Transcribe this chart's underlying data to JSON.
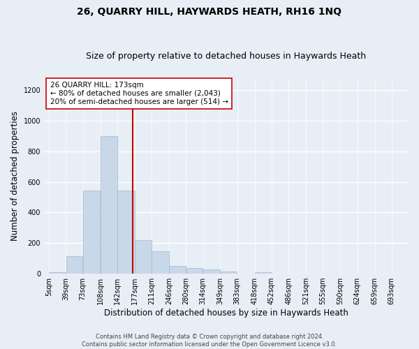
{
  "title_line1": "26, QUARRY HILL, HAYWARDS HEATH, RH16 1NQ",
  "title_line2": "Size of property relative to detached houses in Haywards Heath",
  "xlabel": "Distribution of detached houses by size in Haywards Heath",
  "ylabel": "Number of detached properties",
  "bin_labels": [
    "5sqm",
    "39sqm",
    "73sqm",
    "108sqm",
    "142sqm",
    "177sqm",
    "211sqm",
    "246sqm",
    "280sqm",
    "314sqm",
    "349sqm",
    "383sqm",
    "418sqm",
    "452sqm",
    "486sqm",
    "521sqm",
    "555sqm",
    "590sqm",
    "624sqm",
    "659sqm",
    "693sqm"
  ],
  "bin_edges": [
    5,
    39,
    73,
    108,
    142,
    177,
    211,
    246,
    280,
    314,
    349,
    383,
    418,
    452,
    486,
    521,
    555,
    590,
    624,
    659,
    693,
    727
  ],
  "bar_heights": [
    10,
    115,
    545,
    900,
    545,
    220,
    145,
    50,
    35,
    30,
    15,
    0,
    10,
    0,
    0,
    0,
    0,
    0,
    0,
    0,
    0
  ],
  "bar_color": "#c8d8e8",
  "bar_edge_color": "#a0b8d0",
  "marker_value": 173,
  "marker_color": "#cc0000",
  "annotation_text": "26 QUARRY HILL: 173sqm\n← 80% of detached houses are smaller (2,043)\n20% of semi-detached houses are larger (514) →",
  "annotation_box_color": "#ffffff",
  "annotation_box_edge": "#cc0000",
  "ylim": [
    0,
    1280
  ],
  "yticks": [
    0,
    200,
    400,
    600,
    800,
    1000,
    1200
  ],
  "footnote": "Contains HM Land Registry data © Crown copyright and database right 2024.\nContains public sector information licensed under the Open Government Licence v3.0.",
  "background_color": "#e8eef5",
  "grid_color": "#ffffff",
  "title_fontsize": 10,
  "subtitle_fontsize": 9,
  "axis_label_fontsize": 8.5,
  "tick_fontsize": 7,
  "annot_fontsize": 7.5
}
